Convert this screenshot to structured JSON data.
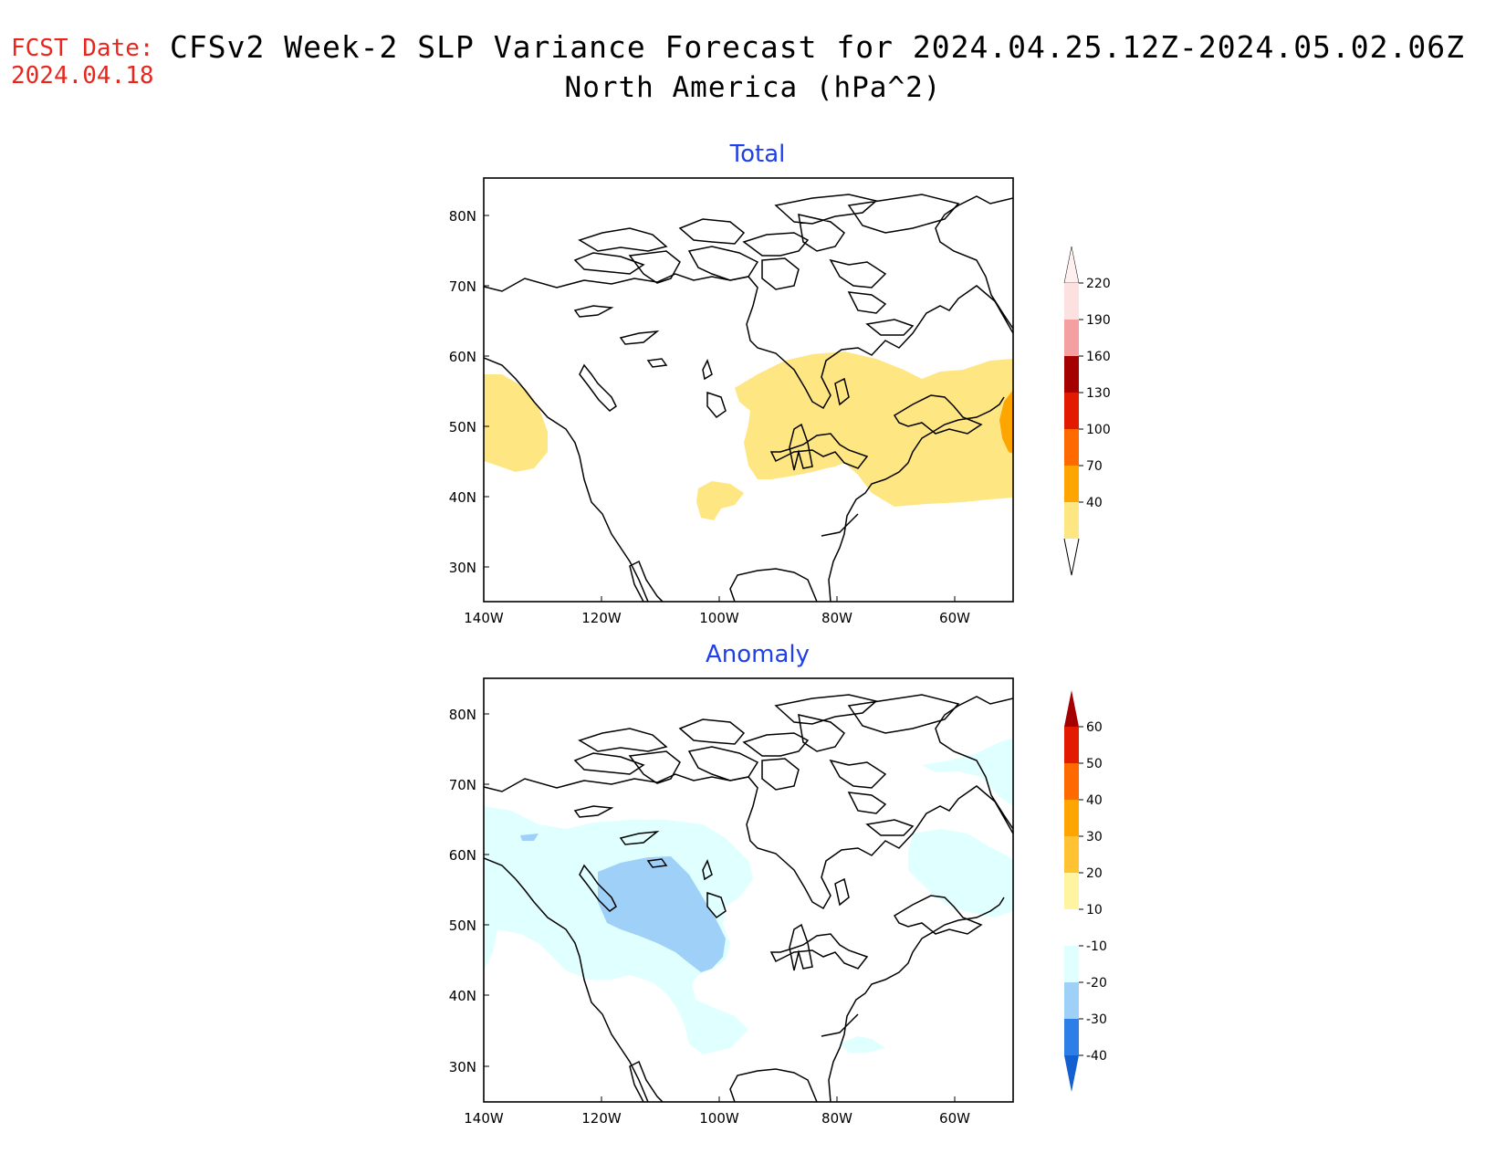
{
  "header": {
    "fcst_label": "FCST Date:",
    "fcst_date": "2024.04.18",
    "title": "CFSv2 Week-2 SLP Variance Forecast for 2024.04.25.12Z-2024.05.02.06Z",
    "subtitle": "North America (hPa^2)"
  },
  "panels": {
    "total": {
      "title": "Total"
    },
    "anomaly": {
      "title": "Anomaly"
    }
  },
  "axes": {
    "lat_labels": [
      "80N",
      "70N",
      "60N",
      "50N",
      "40N",
      "30N"
    ],
    "lon_labels": [
      "140W",
      "120W",
      "100W",
      "80W",
      "60W"
    ]
  },
  "colorbars": {
    "total": {
      "labels": [
        "220",
        "190",
        "160",
        "130",
        "100",
        "70",
        "40"
      ],
      "colors": [
        "#fde0e0",
        "#f4a0a0",
        "#a50000",
        "#e21b00",
        "#ff6a00",
        "#ffa500",
        "#fee682"
      ]
    },
    "anomaly": {
      "labels": [
        "60",
        "50",
        "40",
        "30",
        "20",
        "10",
        "-10",
        "-20",
        "-30",
        "-40"
      ],
      "colors": [
        "#a50000",
        "#e21b00",
        "#ff6a00",
        "#ffa500",
        "#ffc232",
        "#fff5a0",
        "#ffffff",
        "#e0ffff",
        "#9fd0f8",
        "#2d7fe8",
        "#1560d0"
      ]
    }
  },
  "colors": {
    "land_outline": "#000000",
    "total_fill_low": "#fee682",
    "total_fill_mid": "#ffa500",
    "anomaly_fill_light": "#e0ffff",
    "anomaly_fill_mid": "#9fd0f8"
  }
}
